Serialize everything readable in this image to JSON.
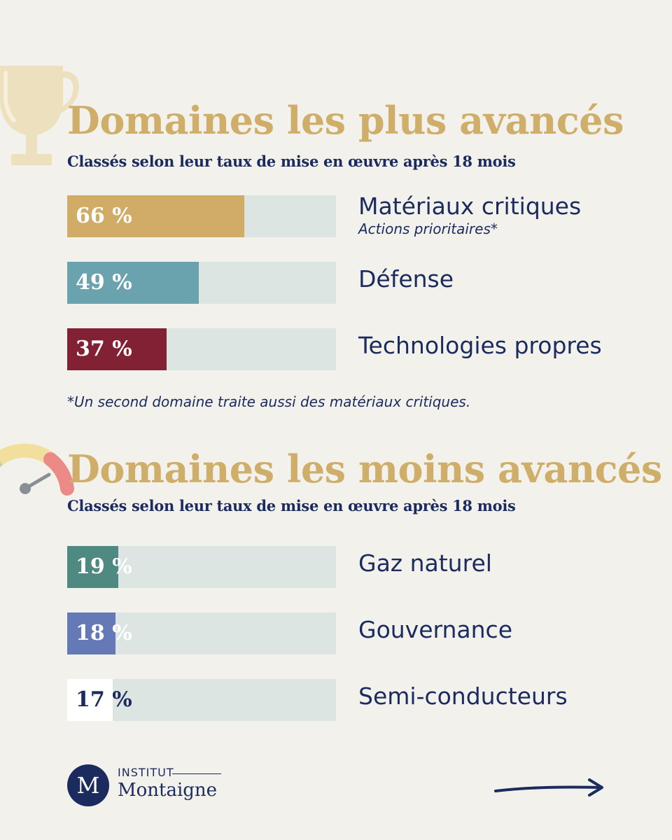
{
  "colors": {
    "background": "#f3f1ec",
    "title": "#cfae6a",
    "text": "#1b2b5e",
    "track": "#dce5e2"
  },
  "top": {
    "title": "Domaines les plus avancés",
    "subtitle": "Classés selon leur taux de mise en œuvre après 18 mois",
    "icon": "trophy-icon"
  },
  "bottom": {
    "title": "Domaines les moins avancés",
    "subtitle": "Classés selon leur taux de mise en œuvre après 18 mois",
    "icon": "gauge-icon"
  },
  "footnote": "*Un second domaine traite aussi des matériaux critiques.",
  "logo": {
    "initial": "M",
    "line1": "INSTITUT",
    "line2": "Montaigne"
  },
  "nav": {
    "next_icon": "arrow-right-icon"
  },
  "chart_data": [
    {
      "type": "bar",
      "orientation": "horizontal",
      "title": "Domaines les plus avancés",
      "subtitle": "Classés selon leur taux de mise en œuvre après 18 mois",
      "xlim": [
        0,
        100
      ],
      "categories": [
        "Matériaux critiques",
        "Défense",
        "Technologies propres"
      ],
      "notes": [
        "Actions prioritaires*",
        "",
        ""
      ],
      "values": [
        66,
        49,
        37
      ],
      "value_labels": [
        "66 %",
        "49 %",
        "37 %"
      ],
      "colors": [
        "#d0ac67",
        "#6aa2ad",
        "#822034"
      ]
    },
    {
      "type": "bar",
      "orientation": "horizontal",
      "title": "Domaines les moins avancés",
      "subtitle": "Classés selon leur taux de mise en œuvre après 18 mois",
      "xlim": [
        0,
        100
      ],
      "categories": [
        "Gaz naturel",
        "Gouvernance",
        "Semi-conducteurs"
      ],
      "notes": [
        "",
        "",
        ""
      ],
      "values": [
        19,
        18,
        17
      ],
      "value_labels": [
        "19 %",
        "18 %",
        "17 %"
      ],
      "colors": [
        "#4e8a82",
        "#6479b5",
        "#ffffff"
      ]
    }
  ]
}
